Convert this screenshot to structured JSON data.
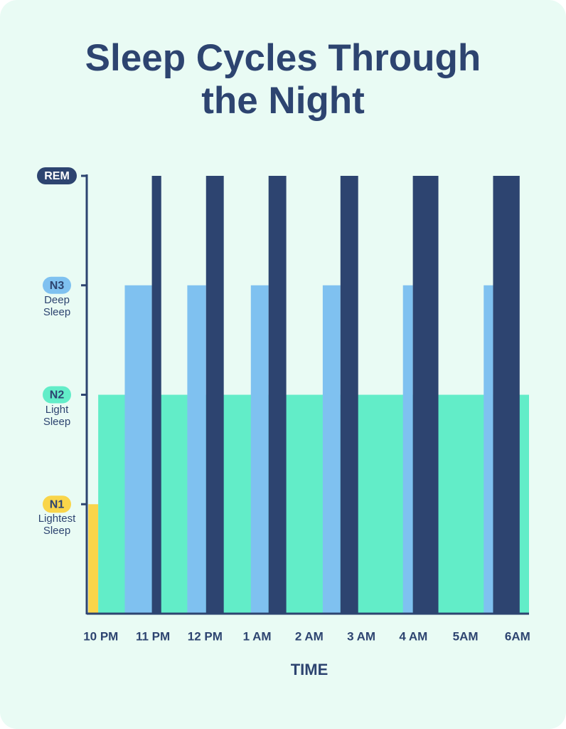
{
  "chart_data": {
    "type": "bar",
    "title": "Sleep Cycles Through the Night",
    "xlabel": "TIME",
    "xlim": [
      -0.27,
      8.22
    ],
    "xticks": [
      {
        "value": 0,
        "label": "10 PM"
      },
      {
        "value": 1,
        "label": "11 PM"
      },
      {
        "value": 2,
        "label": "12 PM"
      },
      {
        "value": 3,
        "label": "1 AM"
      },
      {
        "value": 4,
        "label": "2 AM"
      },
      {
        "value": 5,
        "label": "3 AM"
      },
      {
        "value": 6,
        "label": "4 AM"
      },
      {
        "value": 7,
        "label": "5AM"
      },
      {
        "value": 8,
        "label": "6AM"
      }
    ],
    "ylim": [
      0,
      4
    ],
    "yticks": [
      {
        "value": 4,
        "label": "REM",
        "color": "#2d4470",
        "text_color": "#ffffff"
      },
      {
        "value": 3,
        "label": "N3",
        "sublabel": "Deep Sleep",
        "color": "#7fc1f0",
        "text_color": "#2d4470"
      },
      {
        "value": 2,
        "label": "N2",
        "sublabel": "Light Sleep",
        "color": "#62edc8",
        "text_color": "#2d4470"
      },
      {
        "value": 1,
        "label": "N1",
        "sublabel": "Lightest Sleep",
        "color": "#f9d54a",
        "text_color": "#2d4470"
      }
    ],
    "series": [
      {
        "color": "#f9d54a",
        "starts": [
          -0.24
        ],
        "ends": [
          -0.05
        ],
        "values": [
          1
        ]
      },
      {
        "color": "#62edc8",
        "starts": [
          -0.05
        ],
        "ends": [
          8.22
        ],
        "values": [
          2
        ]
      },
      {
        "color": "#7fc1f0",
        "starts": [
          0.46,
          1.66,
          2.88,
          4.26,
          5.8,
          7.35
        ],
        "ends": [
          0.98,
          2.02,
          3.22,
          4.6,
          5.99,
          7.53
        ],
        "values": [
          3,
          3,
          3,
          3,
          3,
          3
        ]
      },
      {
        "color": "#2d4470",
        "starts": [
          0.98,
          2.02,
          3.22,
          4.6,
          5.99,
          7.53
        ],
        "ends": [
          1.16,
          2.36,
          3.56,
          4.94,
          6.48,
          8.04
        ],
        "values": [
          4,
          4,
          4,
          4,
          4,
          4
        ]
      }
    ]
  }
}
